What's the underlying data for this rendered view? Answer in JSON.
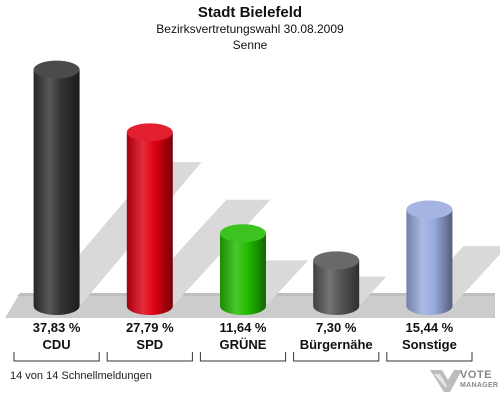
{
  "chart_data": {
    "type": "bar",
    "title": "Stadt Bielefeld",
    "subtitle": "Bezirksvertretungswahl 30.08.2009",
    "subtitle2": "Senne",
    "categories": [
      "CDU",
      "SPD",
      "GRÜNE",
      "Bürgernähe",
      "Sonstige"
    ],
    "values": [
      37.83,
      27.79,
      11.64,
      7.3,
      15.44
    ],
    "value_labels": [
      "37,83 %",
      "27,79 %",
      "11,64 %",
      "7,30 %",
      "15,44 %"
    ],
    "colors": [
      "#333333",
      "#dd0011",
      "#22bb00",
      "#555555",
      "#99aadd"
    ],
    "ylim": [
      0,
      40
    ],
    "grid": false,
    "legend": "none"
  },
  "footer": "14 von 14 Schnellmeldungen",
  "logo": {
    "icon": "vote-manager-logo-icon",
    "text1": "VOTE",
    "text2": "MANAGER"
  }
}
